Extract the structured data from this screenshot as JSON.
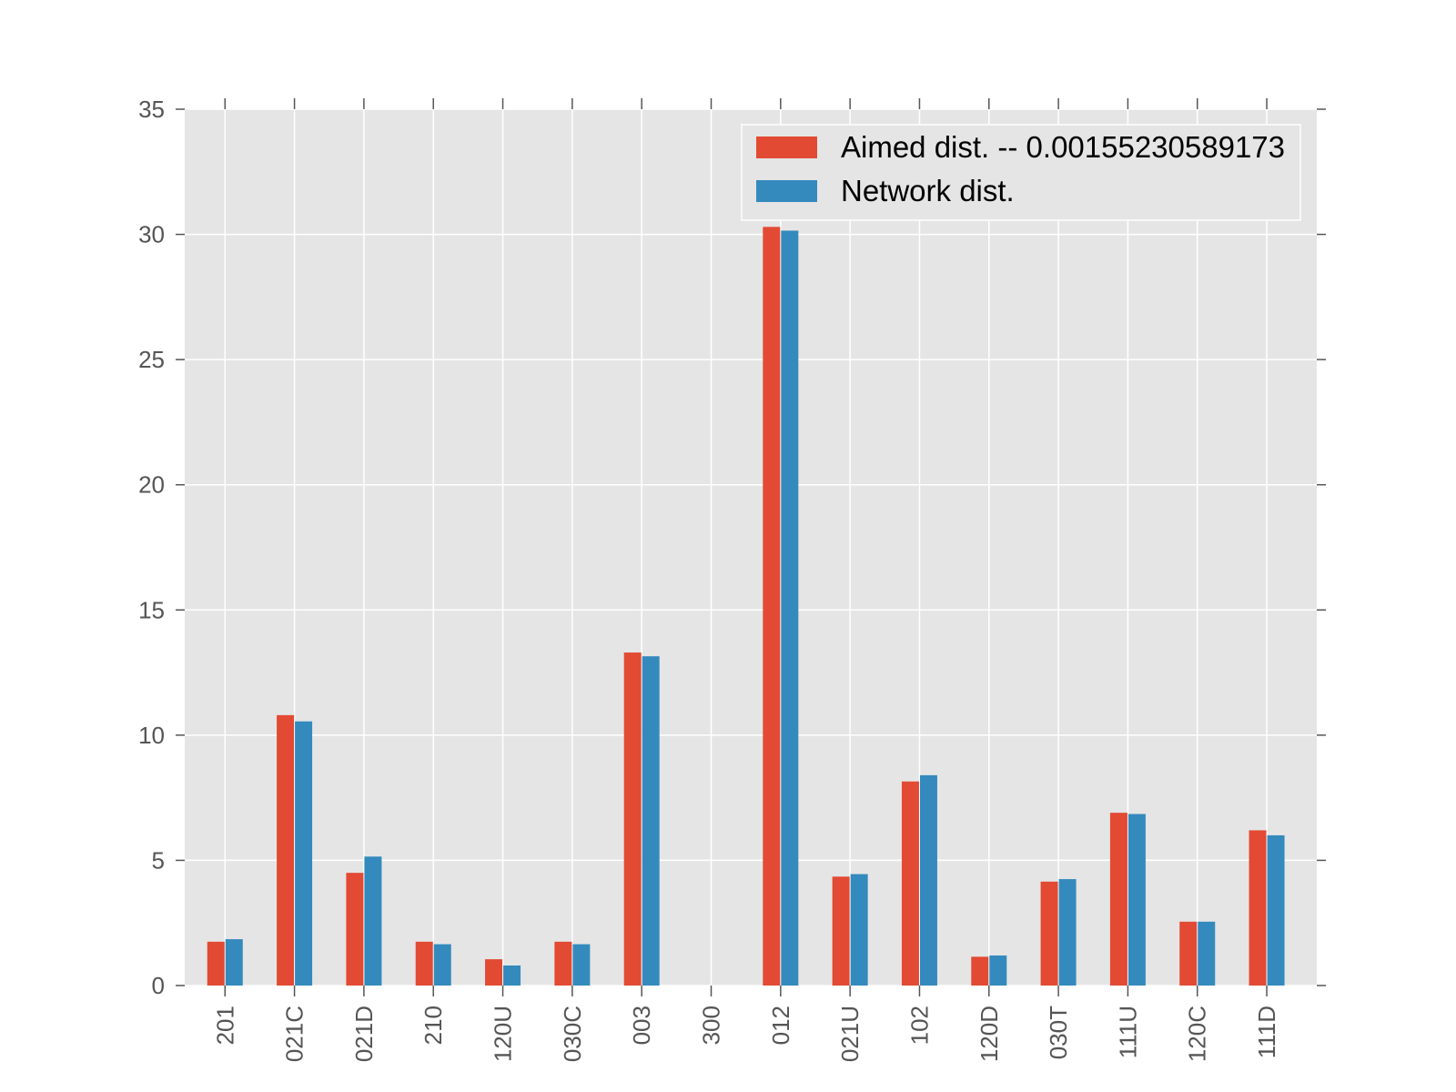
{
  "chart_data": {
    "type": "bar",
    "categories": [
      "201",
      "021C",
      "021D",
      "210",
      "120U",
      "030C",
      "003",
      "300",
      "012",
      "021U",
      "102",
      "120D",
      "030T",
      "111U",
      "120C",
      "111D"
    ],
    "series": [
      {
        "name": "Aimed dist. -- 0.00155230589173",
        "color": "#E24A33",
        "values": [
          1.75,
          10.8,
          4.5,
          1.75,
          1.05,
          1.75,
          13.3,
          0,
          30.3,
          4.35,
          8.15,
          1.15,
          4.15,
          6.9,
          2.55,
          6.2
        ]
      },
      {
        "name": "Network dist.",
        "color": "#348ABD",
        "values": [
          1.85,
          10.55,
          5.15,
          1.65,
          0.8,
          1.65,
          13.15,
          0,
          30.15,
          4.45,
          8.4,
          1.2,
          4.25,
          6.85,
          2.55,
          6.0
        ]
      }
    ],
    "title": "",
    "xlabel": "",
    "ylabel": "",
    "ylim": [
      0,
      35
    ],
    "yticks": [
      "0",
      "5",
      "10",
      "15",
      "20",
      "25",
      "30",
      "35"
    ],
    "grid": true,
    "legend_position": "top-right",
    "background_color": "#E5E5E5",
    "grid_color": "#FFFFFF"
  }
}
